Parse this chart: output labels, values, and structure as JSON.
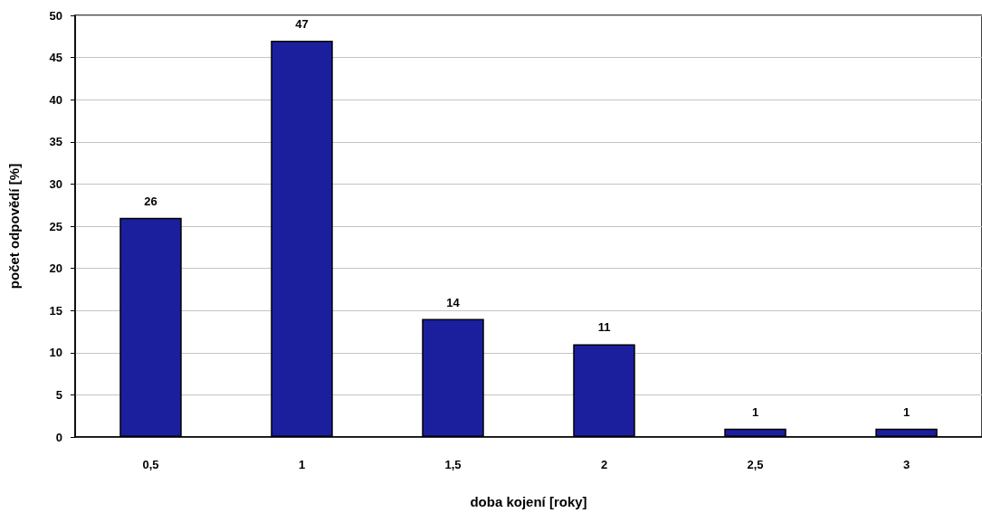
{
  "chart_data": {
    "type": "bar",
    "categories": [
      "0,5",
      "1",
      "1,5",
      "2",
      "2,5",
      "3"
    ],
    "values": [
      26,
      47,
      14,
      11,
      1,
      1
    ],
    "color": "#1b1f9e",
    "xlabel": "doba kojení [roky]",
    "ylabel": "počet odpovědí [%]",
    "ylim": [
      0,
      50
    ],
    "yticks": [
      0,
      5,
      10,
      15,
      20,
      25,
      30,
      35,
      40,
      45,
      50
    ],
    "grid": "y",
    "data_labels": true
  }
}
